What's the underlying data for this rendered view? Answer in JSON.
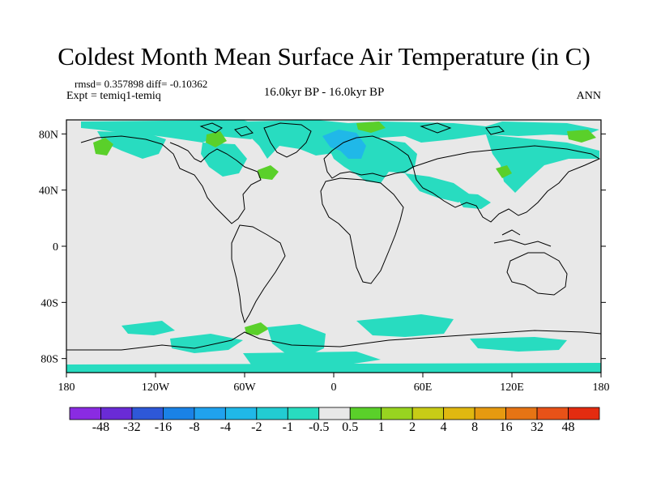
{
  "title": "Coldest Month Mean Surface Air Temperature (in C)",
  "stats": {
    "rmsd_line": "rmsd= 0.357898 diff= -0.10362",
    "expt_line": "Expt = temiq1-temiq",
    "period": "16.0kyr BP - 16.0kyr BP",
    "season": "ANN"
  },
  "axes": {
    "lat_ticks": [
      "80N",
      "40N",
      "0",
      "40S",
      "80S"
    ],
    "lon_ticks": [
      "180",
      "120W",
      "60W",
      "0",
      "60E",
      "120E",
      "180"
    ]
  },
  "colorbar": {
    "colors": [
      "#8a2be2",
      "#6a2bd6",
      "#2e58d8",
      "#1a82e6",
      "#20a2ee",
      "#20b8e8",
      "#22ccd2",
      "#28dcc0",
      "#e8e8e8",
      "#5ad02a",
      "#98d420",
      "#c8cc16",
      "#e0b810",
      "#e69a10",
      "#e67414",
      "#e85218",
      "#e42c10"
    ],
    "labels": [
      "-48",
      "-32",
      "-16",
      "-8",
      "-4",
      "-2",
      "-1",
      "-0.5",
      "0.5",
      "1",
      "2",
      "4",
      "8",
      "16",
      "32",
      "48"
    ]
  },
  "colors": {
    "ocean_land_background": "#e8e8e8",
    "anomaly_cool": "#28dcc0",
    "anomaly_cooler": "#20b8e8",
    "anomaly_warm": "#5ad02a"
  }
}
